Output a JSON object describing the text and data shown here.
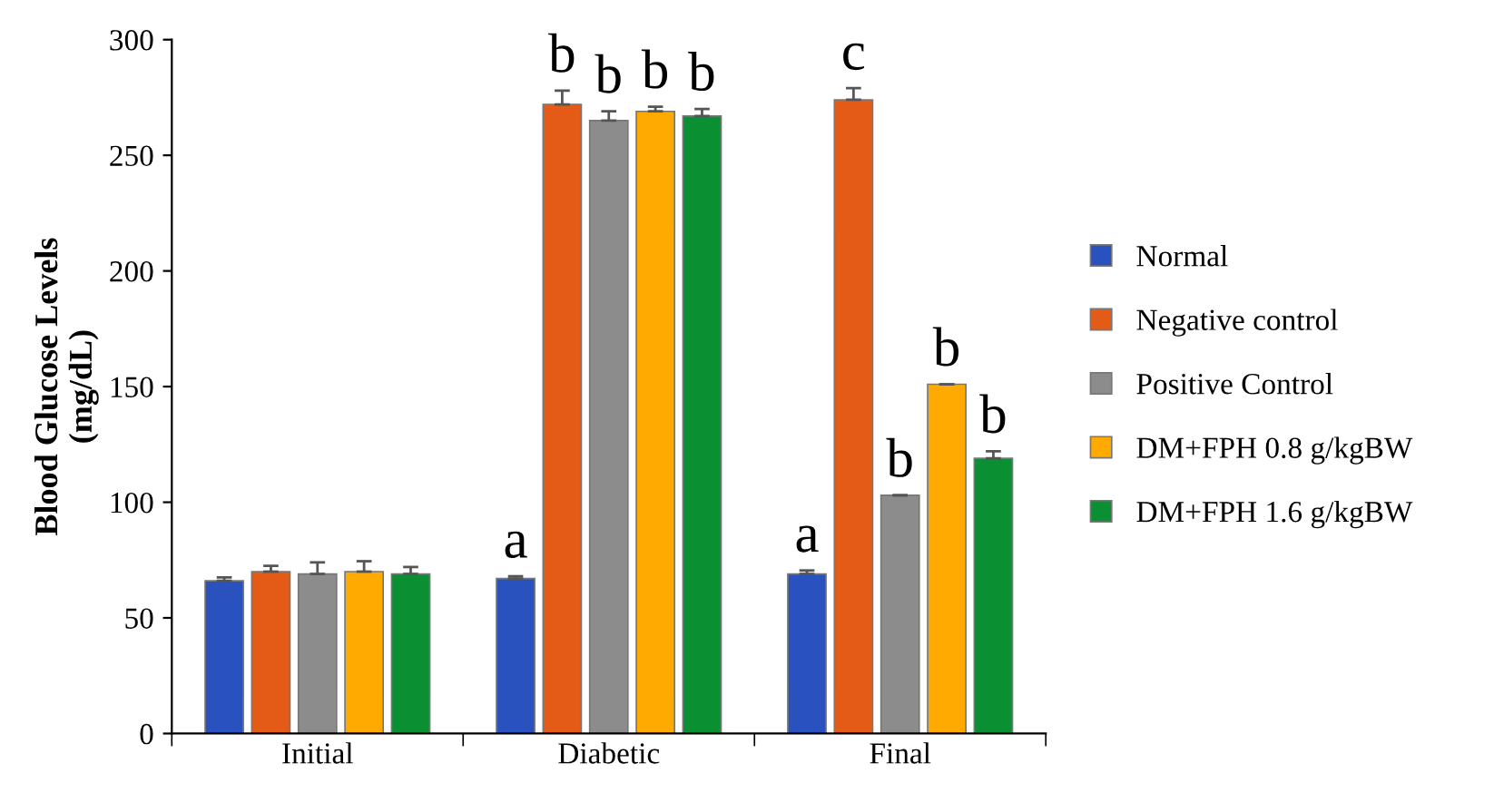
{
  "chart_data": {
    "type": "bar",
    "ylabel": "Blood Glucose Levels\n(mg/dL)",
    "categories": [
      "Initial",
      "Diabetic",
      "Final"
    ],
    "series": [
      {
        "name": "Normal",
        "color": "#2a52be",
        "values": [
          66,
          67,
          69
        ],
        "errors": [
          1.5,
          1,
          1.5
        ],
        "value_labels": [
          null,
          "a",
          "a"
        ]
      },
      {
        "name": "Negative control",
        "color": "#e35b17",
        "values": [
          70,
          272,
          274
        ],
        "errors": [
          2.5,
          6,
          5
        ],
        "value_labels": [
          null,
          "b",
          "c"
        ]
      },
      {
        "name": "Positive Control",
        "color": "#8c8c8c",
        "values": [
          69,
          265,
          103
        ],
        "errors": [
          5,
          4,
          0
        ],
        "value_labels": [
          null,
          "b",
          "b"
        ]
      },
      {
        "name": "DM+FPH 0.8 g/kgBW",
        "color": "#ffaa00",
        "values": [
          70,
          269,
          151
        ],
        "errors": [
          4.5,
          2,
          0
        ],
        "value_labels": [
          null,
          "b",
          "b"
        ]
      },
      {
        "name": "DM+FPH 1.6 g/kgBW",
        "color": "#0a8f32",
        "values": [
          69,
          267,
          119
        ],
        "errors": [
          3,
          3,
          3
        ],
        "value_labels": [
          null,
          "b",
          "b"
        ]
      }
    ],
    "ylim": [
      0,
      300
    ],
    "yticks": [
      0,
      50,
      100,
      150,
      200,
      250,
      300
    ],
    "grid": false,
    "legend": "right"
  }
}
